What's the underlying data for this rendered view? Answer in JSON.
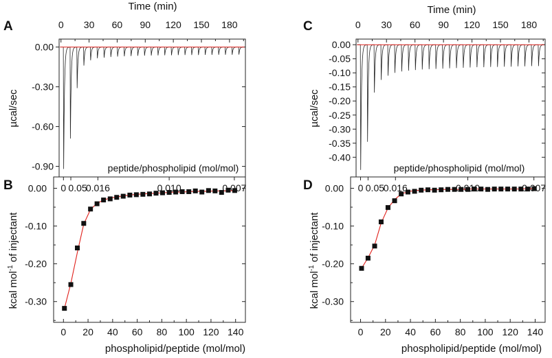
{
  "figure": {
    "colors": {
      "axis": "#222222",
      "trace": "#222222",
      "fit": "#e0201b",
      "marker": "#111111"
    }
  },
  "chart_data": [
    {
      "panel": "A",
      "type": "line",
      "panel_label": "A",
      "top_axis_title": "Time (min)",
      "top_ticks": [
        "0",
        "30",
        "60",
        "90",
        "120",
        "150",
        "180"
      ],
      "top_tick_values": [
        0,
        30,
        60,
        90,
        120,
        150,
        180
      ],
      "xlim_min": [
        -2,
        197
      ],
      "ylabel": "µcal/sec",
      "ylim": [
        -0.98,
        0.06
      ],
      "y_ticks": [
        "0.00",
        "-0.30",
        "-0.60",
        "-0.90"
      ],
      "y_tick_values": [
        0.0,
        -0.3,
        -0.6,
        -0.9
      ],
      "inner_label": "peptide/phospholipid (mol/mol)",
      "baseline": 0.0,
      "injection_start_min": 2.5,
      "injection_interval_min": 7.2,
      "peak_min_values": [
        -0.92,
        -0.69,
        -0.31,
        -0.14,
        -0.1,
        -0.085,
        -0.08,
        -0.075,
        -0.072,
        -0.07,
        -0.068,
        -0.066,
        -0.065,
        -0.064,
        -0.063,
        -0.062,
        -0.062,
        -0.061,
        -0.06,
        -0.06,
        -0.06,
        -0.059,
        -0.059,
        -0.058,
        -0.058,
        -0.058,
        -0.057
      ]
    },
    {
      "panel": "B",
      "type": "scatter",
      "panel_label": "B",
      "top_ticks": [
        "0",
        "0.05",
        "0.016",
        "0.010",
        "0.007"
      ],
      "xlabel": "phospholipid/peptide (mol/mol)",
      "ylabel": "kcal mol⁻¹ of injectant",
      "ylabel_main": "kcal mol",
      "ylabel_sup": "-1",
      "ylabel_tail": " of injectant",
      "xlim": [
        -8,
        148
      ],
      "ylim": [
        -0.355,
        0.03
      ],
      "x_ticks": [
        "0",
        "20",
        "40",
        "60",
        "80",
        "100",
        "120",
        "140"
      ],
      "x_tick_values": [
        0,
        20,
        40,
        60,
        80,
        100,
        120,
        140
      ],
      "y_ticks": [
        "0.00",
        "-0.10",
        "-0.20",
        "-0.30"
      ],
      "y_tick_values": [
        0.0,
        -0.1,
        -0.2,
        -0.3
      ],
      "x": [
        0.8,
        6,
        11.3,
        16.5,
        22,
        27.3,
        32.6,
        38,
        43.3,
        48.6,
        54,
        59.3,
        64.6,
        70,
        75.3,
        80.6,
        86,
        91.3,
        96.6,
        102,
        107.3,
        112.6,
        118,
        123.3,
        128.6,
        134,
        139.3
      ],
      "y": [
        -0.318,
        -0.255,
        -0.158,
        -0.093,
        -0.055,
        -0.041,
        -0.031,
        -0.028,
        -0.024,
        -0.021,
        -0.018,
        -0.017,
        -0.016,
        -0.015,
        -0.013,
        -0.012,
        -0.011,
        -0.01,
        -0.009,
        -0.009,
        -0.007,
        -0.01,
        -0.006,
        -0.007,
        -0.011,
        -0.005,
        -0.006
      ],
      "fit": [
        -0.318,
        -0.252,
        -0.17,
        -0.095,
        -0.056,
        -0.04,
        -0.031,
        -0.026,
        -0.023,
        -0.02,
        -0.018,
        -0.016,
        -0.015,
        -0.014,
        -0.013,
        -0.012,
        -0.011,
        -0.01,
        -0.01,
        -0.009,
        -0.008,
        -0.008,
        -0.008,
        -0.007,
        -0.007,
        -0.007,
        -0.006
      ]
    },
    {
      "panel": "C",
      "type": "line",
      "panel_label": "C",
      "top_axis_title": "Time (min)",
      "top_ticks": [
        "0",
        "30",
        "60",
        "90",
        "120",
        "150",
        "180"
      ],
      "top_tick_values": [
        0,
        30,
        60,
        90,
        120,
        150,
        180
      ],
      "xlim_min": [
        -2,
        197
      ],
      "ylabel": "µcal/sec",
      "ylim": [
        -0.47,
        0.02
      ],
      "y_ticks": [
        "0.00",
        "-0.05",
        "-0.10",
        "-0.15",
        "-0.20",
        "-0.25",
        "-0.30",
        "-0.35",
        "-0.40"
      ],
      "y_tick_values": [
        0.0,
        -0.05,
        -0.1,
        -0.15,
        -0.2,
        -0.25,
        -0.3,
        -0.35,
        -0.4
      ],
      "inner_label": "peptide/phospholipid (mol/mol)",
      "baseline": 0.0,
      "injection_start_min": 2.5,
      "injection_interval_min": 7.2,
      "peak_min_values": [
        -0.445,
        -0.345,
        -0.17,
        -0.125,
        -0.11,
        -0.1,
        -0.095,
        -0.092,
        -0.09,
        -0.088,
        -0.087,
        -0.086,
        -0.085,
        -0.084,
        -0.083,
        -0.082,
        -0.081,
        -0.08,
        -0.08,
        -0.079,
        -0.079,
        -0.078,
        -0.078,
        -0.077,
        -0.077,
        -0.076,
        -0.076
      ]
    },
    {
      "panel": "D",
      "type": "scatter",
      "panel_label": "D",
      "top_ticks": [
        "0",
        "0.05",
        "0.016",
        "0.010",
        "0.007"
      ],
      "xlabel": "phospholipid/peptide (mol/mol)",
      "ylabel": "kcal mol⁻¹ of injectant",
      "ylabel_main": "kcal mol",
      "ylabel_sup": "-1",
      "ylabel_tail": " of injectant",
      "xlim": [
        -8,
        148
      ],
      "ylim": [
        -0.355,
        0.03
      ],
      "x_ticks": [
        "0",
        "20",
        "40",
        "60",
        "80",
        "100",
        "120",
        "140"
      ],
      "x_tick_values": [
        0,
        20,
        40,
        60,
        80,
        100,
        120,
        140
      ],
      "y_ticks": [
        "0.00",
        "-0.10",
        "-0.20",
        "-0.30"
      ],
      "y_tick_values": [
        0.0,
        -0.1,
        -0.2,
        -0.3
      ],
      "x": [
        0.8,
        6,
        11.3,
        16.5,
        22,
        27.3,
        32.6,
        38,
        43.3,
        48.6,
        54,
        59.3,
        64.6,
        70,
        75.3,
        80.6,
        86,
        91.3,
        96.6,
        102,
        107.3,
        112.6,
        118,
        123.3,
        128.6,
        134,
        139.3
      ],
      "y": [
        -0.212,
        -0.185,
        -0.153,
        -0.089,
        -0.051,
        -0.033,
        -0.015,
        -0.01,
        -0.008,
        -0.005,
        -0.004,
        -0.005,
        -0.004,
        -0.003,
        -0.003,
        -0.003,
        -0.003,
        -0.002,
        -0.002,
        -0.003,
        -0.002,
        -0.002,
        -0.002,
        -0.002,
        -0.002,
        -0.002,
        -0.001
      ],
      "fit": [
        -0.212,
        -0.184,
        -0.15,
        -0.092,
        -0.052,
        -0.03,
        -0.015,
        -0.009,
        -0.006,
        -0.005,
        -0.004,
        -0.004,
        -0.003,
        -0.003,
        -0.003,
        -0.003,
        -0.002,
        -0.002,
        -0.002,
        -0.002,
        -0.002,
        -0.002,
        -0.002,
        -0.002,
        -0.002,
        -0.001,
        -0.001
      ]
    }
  ]
}
